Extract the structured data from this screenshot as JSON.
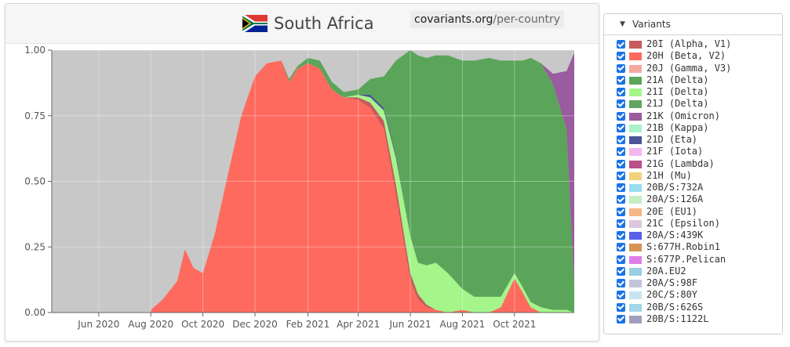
{
  "header": {
    "country": "South Africa",
    "source_host": "covariants.org",
    "source_path": "/per-country"
  },
  "legend": {
    "title": "Variants",
    "items": [
      {
        "label": "20I (Alpha, V1)",
        "color": "#c65b5b"
      },
      {
        "label": "20H (Beta, V2)",
        "color": "#ff6a5e"
      },
      {
        "label": "20J (Gamma, V3)",
        "color": "#f4a9a0"
      },
      {
        "label": "21A (Delta)",
        "color": "#5aa55a"
      },
      {
        "label": "21I (Delta)",
        "color": "#a4f58a"
      },
      {
        "label": "21J (Delta)",
        "color": "#62a462"
      },
      {
        "label": "21K (Omicron)",
        "color": "#9a5b9f"
      },
      {
        "label": "21B (Kappa)",
        "color": "#a8f2c8"
      },
      {
        "label": "21D (Eta)",
        "color": "#4c5396"
      },
      {
        "label": "21F (Iota)",
        "color": "#f3b7f0"
      },
      {
        "label": "21G (Lambda)",
        "color": "#b85189"
      },
      {
        "label": "21H (Mu)",
        "color": "#f2d17d"
      },
      {
        "label": "20B/S:732A",
        "color": "#98dff0"
      },
      {
        "label": "20A/S:126A",
        "color": "#c6eec2"
      },
      {
        "label": "20E (EU1)",
        "color": "#f4b687"
      },
      {
        "label": "21C (Epsilon)",
        "color": "#dcc8dd"
      },
      {
        "label": "20A/S:439K",
        "color": "#5860e6"
      },
      {
        "label": "S:677H.Robin1",
        "color": "#d59456"
      },
      {
        "label": "S:677P.Pelican",
        "color": "#e07ee9"
      },
      {
        "label": "20A.EU2",
        "color": "#98cfe2"
      },
      {
        "label": "20A/S:98F",
        "color": "#c3c3d8"
      },
      {
        "label": "20C/S:80Y",
        "color": "#c8e4f3"
      },
      {
        "label": "20B/S:626S",
        "color": "#a3d6ea"
      },
      {
        "label": "20B/S:1122L",
        "color": "#9f9fbf"
      }
    ]
  },
  "chart_data": {
    "type": "area",
    "stacked": true,
    "title": "South Africa",
    "xlabel": "",
    "ylabel": "",
    "ylim": [
      0,
      1
    ],
    "xlim": [
      "2020-04-07",
      "2021-12-10"
    ],
    "background_color": "#c8c8c8",
    "grid": true,
    "y_ticks": [
      "0.00",
      "0.25",
      "0.50",
      "0.75",
      "1.00"
    ],
    "x_tick_labels": [
      {
        "label": "Jun 2020",
        "date": "2020-06-01"
      },
      {
        "label": "Aug 2020",
        "date": "2020-08-01"
      },
      {
        "label": "Oct 2020",
        "date": "2020-10-01"
      },
      {
        "label": "Dec 2020",
        "date": "2020-12-01"
      },
      {
        "label": "Feb 2021",
        "date": "2021-02-01"
      },
      {
        "label": "Apr 2021",
        "date": "2021-04-01"
      },
      {
        "label": "Jun 2021",
        "date": "2021-06-01"
      },
      {
        "label": "Aug 2021",
        "date": "2021-08-01"
      },
      {
        "label": "Oct 2021",
        "date": "2021-10-01"
      }
    ],
    "x": [
      "2020-08-01",
      "2020-08-15",
      "2020-09-01",
      "2020-09-10",
      "2020-09-20",
      "2020-10-01",
      "2020-10-15",
      "2020-11-01",
      "2020-11-15",
      "2020-12-01",
      "2020-12-15",
      "2021-01-01",
      "2021-01-10",
      "2021-01-20",
      "2021-02-01",
      "2021-02-15",
      "2021-03-01",
      "2021-03-15",
      "2021-04-01",
      "2021-04-15",
      "2021-05-01",
      "2021-05-15",
      "2021-06-01",
      "2021-06-10",
      "2021-06-20",
      "2021-07-01",
      "2021-07-15",
      "2021-08-01",
      "2021-08-15",
      "2021-09-01",
      "2021-09-15",
      "2021-10-01",
      "2021-10-10",
      "2021-10-20",
      "2021-11-01",
      "2021-11-15",
      "2021-12-01",
      "2021-12-10"
    ],
    "series": [
      {
        "name": "20H (Beta, V2)",
        "color": "#ff6a5e",
        "values": [
          0.01,
          0.05,
          0.12,
          0.24,
          0.17,
          0.15,
          0.3,
          0.55,
          0.75,
          0.9,
          0.95,
          0.96,
          0.88,
          0.93,
          0.95,
          0.93,
          0.85,
          0.82,
          0.81,
          0.78,
          0.7,
          0.45,
          0.12,
          0.05,
          0.02,
          0.01,
          0.0,
          0.01,
          0.0,
          0.0,
          0.02,
          0.13,
          0.08,
          0.02,
          0.0,
          0.0,
          0.0,
          0.0
        ]
      },
      {
        "name": "20I (Alpha, V1)",
        "color": "#c65b5b",
        "values": [
          0,
          0,
          0,
          0,
          0,
          0,
          0,
          0,
          0,
          0,
          0,
          0,
          0,
          0,
          0,
          0,
          0,
          0,
          0.01,
          0.02,
          0.03,
          0.04,
          0.03,
          0.02,
          0.01,
          0.0,
          0,
          0,
          0,
          0,
          0,
          0,
          0,
          0,
          0,
          0,
          0,
          0
        ]
      },
      {
        "name": "21I (Delta)",
        "color": "#a4f58a",
        "values": [
          0,
          0,
          0,
          0,
          0,
          0,
          0,
          0,
          0,
          0,
          0,
          0,
          0,
          0,
          0,
          0,
          0,
          0,
          0.01,
          0.02,
          0.04,
          0.1,
          0.14,
          0.12,
          0.15,
          0.18,
          0.15,
          0.08,
          0.06,
          0.06,
          0.04,
          0.02,
          0.02,
          0.02,
          0.02,
          0.01,
          0.01,
          0.0
        ]
      },
      {
        "name": "21D (Eta)",
        "color": "#4c5396",
        "values": [
          0,
          0,
          0,
          0,
          0,
          0,
          0,
          0,
          0,
          0,
          0,
          0,
          0,
          0,
          0,
          0,
          0,
          0,
          0,
          0.01,
          0.01,
          0.01,
          0,
          0,
          0,
          0,
          0,
          0,
          0,
          0,
          0,
          0,
          0,
          0,
          0,
          0,
          0,
          0
        ]
      },
      {
        "name": "21A (Delta)",
        "color": "#5aa55a",
        "values": [
          0,
          0,
          0,
          0,
          0,
          0,
          0,
          0,
          0,
          0,
          0,
          0,
          0.01,
          0.01,
          0.02,
          0.03,
          0.03,
          0.02,
          0.02,
          0.06,
          0.12,
          0.36,
          0.71,
          0.79,
          0.79,
          0.79,
          0.83,
          0.87,
          0.9,
          0.91,
          0.9,
          0.81,
          0.86,
          0.93,
          0.93,
          0.86,
          0.69,
          0.1
        ]
      },
      {
        "name": "21K (Omicron)",
        "color": "#9a5b9f",
        "values": [
          0,
          0,
          0,
          0,
          0,
          0,
          0,
          0,
          0,
          0,
          0,
          0,
          0,
          0,
          0,
          0,
          0,
          0,
          0,
          0,
          0,
          0,
          0,
          0,
          0,
          0,
          0,
          0,
          0,
          0,
          0,
          0,
          0,
          0,
          0,
          0.04,
          0.22,
          0.89
        ]
      }
    ]
  }
}
